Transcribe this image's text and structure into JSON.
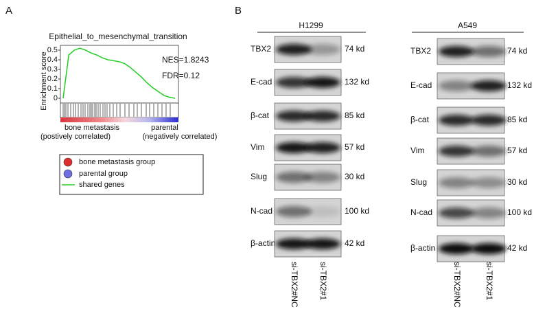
{
  "panel_a": {
    "label": "A",
    "title": "Epithelial_to_mesenchymal_transition",
    "ylabel": "Enrichment score",
    "yticks": [
      0.5,
      0.4,
      0.3,
      0.2,
      0.1,
      0
    ],
    "ylim": [
      -0.05,
      0.55
    ],
    "scores": [
      0,
      0.45,
      0.5,
      0.52,
      0.5,
      0.47,
      0.45,
      0.42,
      0.4,
      0.39,
      0.38,
      0.36,
      0.32,
      0.27,
      0.22,
      0.16,
      0.11,
      0.07,
      0.03,
      0.01,
      0
    ],
    "nes": "NES=1.8243",
    "fdr": "FDR=0.12",
    "left_label": "bone metastasis",
    "left_sub": "(postively correlated)",
    "right_label": "parental",
    "right_sub": "(negatively correlated)",
    "legend": [
      "bone metastasis group",
      "parental group",
      "shared genes"
    ]
  },
  "panel_b": {
    "label": "B",
    "lanes": [
      "si-TBX2#NC",
      "si-TBX2#1"
    ],
    "cell_lines": [
      {
        "name": "H1299",
        "rows": [
          {
            "protein": "TBX2",
            "size": "74 kd"
          },
          {
            "protein": "E-cad",
            "size": "132 kd"
          },
          {
            "protein": "β-cat",
            "size": "85 kd"
          },
          {
            "protein": "Vim",
            "size": "57 kd"
          },
          {
            "protein": "Slug",
            "size": "30 kd"
          },
          {
            "protein": "N-cad",
            "size": "100 kd"
          },
          {
            "protein": "β-actin",
            "size": "42 kd"
          }
        ]
      },
      {
        "name": "A549",
        "rows": [
          {
            "protein": "TBX2",
            "size": "74 kd"
          },
          {
            "protein": "E-cad",
            "size": "132 kd"
          },
          {
            "protein": "β-cat",
            "size": "85 kd"
          },
          {
            "protein": "Vim",
            "size": "57 kd"
          },
          {
            "protein": "Slug",
            "size": "30 kd"
          },
          {
            "protein": "N-cad",
            "size": "100 kd"
          },
          {
            "protein": "β-actin",
            "size": "42 kd"
          }
        ]
      }
    ]
  }
}
